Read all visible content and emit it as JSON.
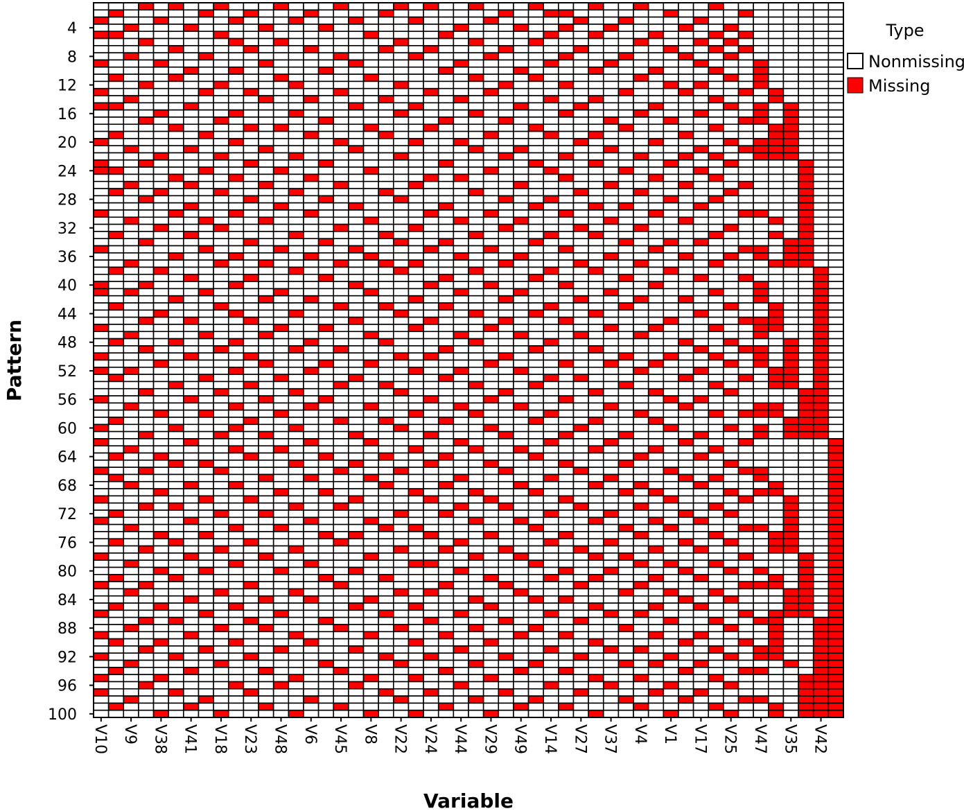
{
  "chart_data": {
    "type": "heatmap",
    "title": "",
    "xlabel": "Variable",
    "ylabel": "Pattern",
    "n_patterns": 100,
    "n_variables": 50,
    "x_tick_labels": [
      "V10",
      "V9",
      "V38",
      "V41",
      "V18",
      "V23",
      "V48",
      "V6",
      "V45",
      "V8",
      "V22",
      "V24",
      "V44",
      "V29",
      "V49",
      "V14",
      "V27",
      "V37",
      "V4",
      "V1",
      "V17",
      "V25",
      "V47",
      "V35",
      "V42"
    ],
    "y_tick_labels": [
      "4",
      "8",
      "12",
      "16",
      "20",
      "24",
      "28",
      "32",
      "36",
      "40",
      "44",
      "48",
      "52",
      "56",
      "60",
      "64",
      "68",
      "72",
      "76",
      "80",
      "84",
      "88",
      "92",
      "96",
      "100"
    ],
    "legend": {
      "title": "Type",
      "position": "top-right",
      "entries": [
        {
          "label": "Nonmissing",
          "color": "#ffffff"
        },
        {
          "label": "Missing",
          "color": "#ff0000"
        }
      ]
    },
    "colors": {
      "missing": "#ff0000",
      "nonmissing": "#ffffff",
      "border": "#000000"
    },
    "missing_cells_by_pattern": [
      [
        3,
        5,
        8,
        12,
        16,
        20,
        22,
        25,
        29,
        33,
        36,
        41
      ],
      [
        1,
        7,
        10,
        14,
        19,
        27,
        30,
        31,
        38,
        43
      ],
      [
        0,
        4,
        9,
        13,
        17,
        21,
        26,
        32,
        35,
        40
      ],
      [
        2,
        6,
        11,
        15,
        24,
        28,
        31,
        34,
        39,
        42
      ],
      [
        0,
        1,
        8,
        18,
        23,
        30,
        33,
        37,
        41,
        43
      ],
      [
        3,
        9,
        12,
        20,
        25,
        29,
        36,
        40,
        42
      ],
      [
        5,
        10,
        14,
        19,
        22,
        27,
        32,
        38,
        41,
        43
      ],
      [
        2,
        7,
        16,
        21,
        26,
        31,
        35,
        39,
        42
      ],
      [
        0,
        4,
        11,
        17,
        24,
        30,
        34,
        40,
        44
      ],
      [
        6,
        9,
        15,
        23,
        28,
        33,
        37,
        41,
        44
      ],
      [
        1,
        5,
        12,
        18,
        25,
        29,
        36,
        42,
        44
      ],
      [
        3,
        8,
        13,
        20,
        27,
        31,
        38,
        40,
        44
      ],
      [
        0,
        7,
        10,
        16,
        22,
        26,
        35,
        39,
        43,
        45
      ],
      [
        2,
        11,
        14,
        19,
        24,
        30,
        33,
        41,
        45
      ],
      [
        0,
        1,
        6,
        17,
        21,
        28,
        32,
        37,
        42,
        44,
        46
      ],
      [
        4,
        9,
        13,
        20,
        25,
        31,
        36,
        40,
        44,
        46
      ],
      [
        3,
        8,
        15,
        23,
        27,
        34,
        38,
        43,
        44,
        46
      ],
      [
        5,
        10,
        12,
        18,
        22,
        29,
        35,
        41,
        45,
        46
      ],
      [
        1,
        7,
        14,
        19,
        26,
        30,
        33,
        39,
        45,
        46
      ],
      [
        0,
        9,
        16,
        21,
        24,
        32,
        37,
        42,
        44,
        45,
        46
      ],
      [
        2,
        6,
        11,
        17,
        25,
        28,
        34,
        40,
        43,
        44,
        45,
        46
      ],
      [
        4,
        8,
        13,
        20,
        27,
        31,
        36,
        39,
        41,
        44,
        45,
        46
      ],
      [
        0,
        3,
        10,
        15,
        23,
        29,
        33,
        38,
        42,
        47
      ],
      [
        0,
        1,
        7,
        12,
        18,
        26,
        30,
        35,
        40,
        47
      ],
      [
        5,
        9,
        14,
        22,
        24,
        31,
        37,
        41,
        47
      ],
      [
        2,
        6,
        11,
        16,
        21,
        28,
        34,
        39,
        43,
        47
      ],
      [
        1,
        4,
        8,
        13,
        19,
        25,
        32,
        36,
        42,
        47
      ],
      [
        3,
        10,
        15,
        20,
        27,
        30,
        38,
        41,
        47
      ],
      [
        6,
        12,
        17,
        23,
        29,
        33,
        35,
        40,
        47
      ],
      [
        0,
        5,
        9,
        14,
        22,
        26,
        31,
        37,
        43,
        44,
        47
      ],
      [
        2,
        7,
        11,
        18,
        24,
        28,
        34,
        39,
        45,
        47
      ],
      [
        4,
        8,
        16,
        21,
        27,
        32,
        36,
        42,
        47
      ],
      [
        1,
        6,
        13,
        19,
        25,
        30,
        33,
        41,
        45,
        47
      ],
      [
        3,
        10,
        15,
        20,
        23,
        29,
        35,
        38,
        40,
        46,
        47
      ],
      [
        0,
        7,
        12,
        17,
        22,
        26,
        31,
        37,
        43,
        44,
        46,
        47
      ],
      [
        5,
        9,
        14,
        18,
        24,
        28,
        34,
        39,
        42,
        44,
        46,
        47
      ],
      [
        2,
        8,
        11,
        16,
        19,
        21,
        27,
        32,
        36,
        41,
        45,
        46,
        47
      ],
      [
        1,
        4,
        13,
        20,
        25,
        30,
        33,
        38,
        48
      ],
      [
        6,
        10,
        15,
        23,
        29,
        35,
        40,
        43,
        48
      ],
      [
        0,
        3,
        9,
        17,
        22,
        26,
        31,
        37,
        44,
        48
      ],
      [
        0,
        2,
        7,
        12,
        18,
        24,
        28,
        34,
        41,
        44,
        48
      ],
      [
        5,
        11,
        14,
        21,
        27,
        32,
        36,
        39,
        44,
        48
      ],
      [
        1,
        8,
        16,
        19,
        23,
        30,
        35,
        42,
        45,
        48
      ],
      [
        4,
        9,
        13,
        20,
        25,
        29,
        33,
        40,
        45,
        48
      ],
      [
        3,
        6,
        10,
        17,
        22,
        27,
        31,
        38,
        43,
        44,
        45,
        48
      ],
      [
        0,
        12,
        15,
        21,
        26,
        34,
        37,
        41,
        44,
        45,
        48
      ],
      [
        2,
        7,
        11,
        18,
        24,
        28,
        32,
        36,
        44,
        48
      ],
      [
        1,
        5,
        9,
        14,
        19,
        25,
        30,
        39,
        42,
        46,
        48
      ],
      [
        3,
        8,
        13,
        16,
        23,
        29,
        33,
        40,
        43,
        44,
        46,
        48
      ],
      [
        0,
        6,
        10,
        20,
        22,
        27,
        35,
        38,
        41,
        44,
        46,
        48
      ],
      [
        4,
        11,
        15,
        18,
        26,
        31,
        34,
        37,
        42,
        44,
        46,
        48
      ],
      [
        0,
        2,
        9,
        14,
        21,
        24,
        28,
        36,
        40,
        45,
        46,
        48
      ],
      [
        1,
        7,
        12,
        17,
        23,
        30,
        32,
        39,
        43,
        45,
        46,
        48
      ],
      [
        5,
        10,
        16,
        19,
        25,
        29,
        35,
        41,
        45,
        46,
        48
      ],
      [
        3,
        8,
        13,
        20,
        27,
        33,
        37,
        42,
        47,
        48
      ],
      [
        0,
        6,
        11,
        15,
        22,
        26,
        31,
        38,
        40,
        47,
        48
      ],
      [
        2,
        9,
        14,
        18,
        24,
        28,
        34,
        39,
        44,
        45,
        47,
        48
      ],
      [
        4,
        7,
        12,
        21,
        25,
        30,
        36,
        41,
        43,
        44,
        45,
        47,
        48
      ],
      [
        1,
        10,
        16,
        19,
        23,
        29,
        33,
        37,
        46,
        47,
        48
      ],
      [
        0,
        5,
        9,
        13,
        20,
        26,
        32,
        38,
        42,
        44,
        46,
        47,
        48
      ],
      [
        3,
        8,
        11,
        17,
        22,
        27,
        31,
        35,
        40,
        44,
        46,
        47,
        48
      ],
      [
        0,
        6,
        14,
        18,
        24,
        30,
        34,
        39,
        43,
        49
      ],
      [
        2,
        9,
        12,
        21,
        25,
        28,
        33,
        37,
        41,
        49
      ],
      [
        1,
        4,
        10,
        15,
        19,
        23,
        29,
        36,
        40,
        49
      ],
      [
        5,
        7,
        13,
        17,
        22,
        26,
        31,
        35,
        42,
        49
      ],
      [
        0,
        3,
        8,
        16,
        20,
        27,
        32,
        38,
        43,
        44,
        49
      ],
      [
        1,
        11,
        14,
        18,
        24,
        30,
        34,
        39,
        41,
        44,
        49
      ],
      [
        2,
        6,
        9,
        19,
        23,
        28,
        33,
        36,
        40,
        45,
        49
      ],
      [
        4,
        12,
        15,
        21,
        25,
        29,
        35,
        37,
        42,
        44,
        45,
        49
      ],
      [
        0,
        7,
        10,
        17,
        22,
        26,
        31,
        38,
        43,
        46,
        49
      ],
      [
        3,
        5,
        13,
        16,
        24,
        27,
        32,
        36,
        41,
        46,
        49
      ],
      [
        1,
        8,
        11,
        20,
        23,
        30,
        34,
        39,
        42,
        46,
        49
      ],
      [
        0,
        6,
        14,
        18,
        25,
        28,
        33,
        37,
        40,
        46,
        49
      ],
      [
        2,
        9,
        12,
        19,
        21,
        29,
        35,
        38,
        43,
        44,
        46,
        49
      ],
      [
        4,
        7,
        15,
        17,
        22,
        26,
        31,
        36,
        41,
        45,
        46,
        49
      ],
      [
        1,
        5,
        10,
        16,
        24,
        30,
        34,
        39,
        42,
        45,
        46,
        49
      ],
      [
        3,
        8,
        13,
        20,
        23,
        27,
        32,
        37,
        40,
        45,
        46,
        49
      ],
      [
        0,
        6,
        11,
        18,
        25,
        28,
        33,
        35,
        43,
        47,
        49
      ],
      [
        2,
        9,
        14,
        21,
        22,
        29,
        36,
        38,
        41,
        47,
        49
      ],
      [
        4,
        7,
        12,
        17,
        24,
        31,
        34,
        39,
        42,
        44,
        47,
        49
      ],
      [
        1,
        5,
        15,
        19,
        26,
        30,
        33,
        37,
        40,
        45,
        47,
        49
      ],
      [
        0,
        3,
        10,
        16,
        23,
        27,
        32,
        36,
        43,
        44,
        45,
        47,
        49
      ],
      [
        2,
        8,
        13,
        20,
        22,
        28,
        35,
        38,
        41,
        46,
        47,
        49
      ],
      [
        6,
        11,
        14,
        18,
        25,
        29,
        31,
        39,
        42,
        46,
        47,
        49
      ],
      [
        1,
        4,
        9,
        17,
        21,
        26,
        33,
        37,
        40,
        46,
        47,
        49
      ],
      [
        0,
        7,
        12,
        19,
        24,
        30,
        34,
        36,
        43,
        45,
        46,
        47,
        49
      ],
      [
        3,
        5,
        10,
        15,
        22,
        27,
        32,
        38,
        41,
        44,
        45,
        48,
        49
      ],
      [
        2,
        8,
        11,
        16,
        20,
        25,
        29,
        35,
        42,
        45,
        48,
        49
      ],
      [
        0,
        6,
        13,
        18,
        23,
        28,
        31,
        37,
        40,
        45,
        48,
        49
      ],
      [
        1,
        4,
        9,
        14,
        21,
        26,
        33,
        39,
        43,
        45,
        48,
        49
      ],
      [
        3,
        7,
        12,
        17,
        24,
        30,
        34,
        36,
        41,
        44,
        45,
        48,
        49
      ],
      [
        0,
        5,
        10,
        19,
        22,
        27,
        32,
        38,
        42,
        44,
        45,
        48,
        49
      ],
      [
        2,
        8,
        15,
        20,
        25,
        29,
        35,
        37,
        40,
        46,
        48,
        49
      ],
      [
        1,
        6,
        11,
        16,
        23,
        28,
        31,
        39,
        43,
        44,
        48,
        49
      ],
      [
        0,
        4,
        13,
        18,
        21,
        26,
        33,
        36,
        41,
        47,
        48,
        49
      ],
      [
        3,
        9,
        12,
        17,
        24,
        30,
        34,
        38,
        42,
        47,
        48,
        49
      ],
      [
        0,
        5,
        10,
        19,
        22,
        27,
        32,
        37,
        40,
        47,
        48,
        49
      ],
      [
        2,
        7,
        14,
        20,
        25,
        29,
        35,
        39,
        43,
        44,
        47,
        48,
        49
      ],
      [
        1,
        6,
        11,
        16,
        23,
        28,
        31,
        36,
        41,
        45,
        47,
        48,
        49
      ],
      [
        4,
        8,
        13,
        18,
        21,
        26,
        33,
        38,
        42,
        45,
        47,
        48,
        49
      ]
    ]
  }
}
